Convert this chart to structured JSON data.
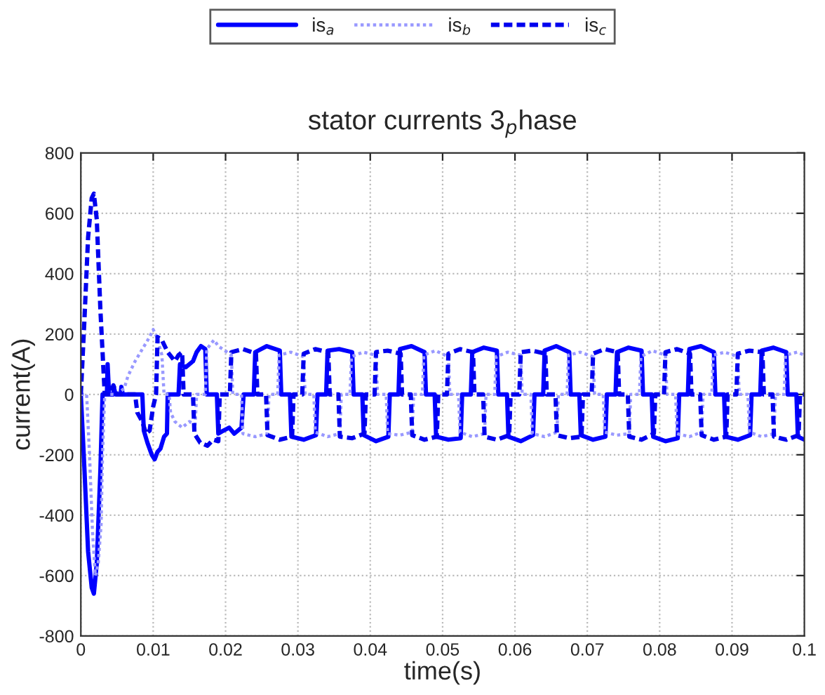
{
  "chart_data": {
    "type": "line",
    "title": "stator currents 3$_{p}$hase",
    "xlabel": "time(s)",
    "ylabel": "current(A)",
    "xlim": [
      0,
      0.1
    ],
    "xticks": [
      0,
      0.01,
      0.02,
      0.03,
      0.04,
      0.05,
      0.06,
      0.07,
      0.08,
      0.09,
      0.1
    ],
    "ylim": [
      -800,
      800
    ],
    "yticks": [
      -800,
      -600,
      -400,
      -200,
      0,
      200,
      400,
      600,
      800
    ],
    "grid": true,
    "legend": "top",
    "marker": "none",
    "series": [
      {
        "name": "is$_{a}$",
        "color": "#0000ff",
        "line_style": "solid",
        "x": [
          0,
          0.0005,
          0.001,
          0.0015,
          0.0018,
          0.0022,
          0.0027,
          0.003,
          0.0036,
          0.0037,
          0.0039,
          0.0045,
          0.0046,
          0.0048,
          0.0055,
          0.0056,
          0.0058,
          0.0085,
          0.0087,
          0.0092,
          0.0098,
          0.0102,
          0.0106,
          0.011,
          0.0115,
          0.0119,
          0.012,
          0.0135,
          0.0137,
          0.0145,
          0.0155,
          0.016,
          0.0166,
          0.0172,
          0.0174,
          0.0188,
          0.019,
          0.0197,
          0.0205,
          0.0212,
          0.0222,
          0.0225,
          0.0239,
          0.0241,
          0.0257,
          0.0275,
          0.0277,
          0.0289,
          0.0291,
          0.0308,
          0.0325,
          0.0327,
          0.0339,
          0.0341,
          0.0357,
          0.0375,
          0.0377,
          0.0389,
          0.0391,
          0.0408,
          0.0425,
          0.0427,
          0.0439,
          0.0441,
          0.0457,
          0.0475,
          0.0477,
          0.0489,
          0.0491,
          0.0508,
          0.0525,
          0.0527,
          0.0539,
          0.0541,
          0.0557,
          0.0575,
          0.0577,
          0.0589,
          0.0591,
          0.0608,
          0.0625,
          0.0627,
          0.0639,
          0.0641,
          0.0657,
          0.0675,
          0.0677,
          0.0689,
          0.0691,
          0.0708,
          0.0725,
          0.0727,
          0.0739,
          0.0741,
          0.0757,
          0.0775,
          0.0777,
          0.0789,
          0.0791,
          0.0808,
          0.0825,
          0.0827,
          0.0839,
          0.0841,
          0.0857,
          0.0875,
          0.0877,
          0.0889,
          0.0891,
          0.0908,
          0.0925,
          0.0927,
          0.0939,
          0.0941,
          0.0957,
          0.0975,
          0.0977,
          0.0989,
          0.0991,
          0.1
        ],
        "values": [
          0,
          -250,
          -520,
          -640,
          -660,
          -560,
          -250,
          0,
          0,
          100,
          0,
          0,
          20,
          0,
          0,
          25,
          0,
          0,
          -120,
          -160,
          -200,
          -215,
          -190,
          -180,
          -140,
          -130,
          0,
          0,
          100,
          90,
          110,
          140,
          160,
          150,
          0,
          0,
          -130,
          -120,
          -110,
          -130,
          -110,
          0,
          0,
          140,
          160,
          145,
          0,
          0,
          -140,
          -150,
          -135,
          0,
          0,
          145,
          150,
          140,
          0,
          0,
          -135,
          -155,
          -140,
          0,
          0,
          150,
          160,
          140,
          0,
          0,
          -140,
          -150,
          -145,
          0,
          0,
          140,
          155,
          145,
          0,
          0,
          -140,
          -155,
          -135,
          0,
          0,
          145,
          160,
          140,
          0,
          0,
          -135,
          -150,
          -140,
          0,
          0,
          140,
          155,
          145,
          0,
          0,
          -140,
          -155,
          -145,
          0,
          0,
          150,
          160,
          140,
          0,
          0,
          -140,
          -150,
          -135,
          0,
          0,
          145,
          155,
          140,
          0,
          0,
          -140,
          -150
        ]
      },
      {
        "name": "is$_{b}$",
        "color": "#9999ff",
        "line_style": "dotted",
        "x": [
          0,
          0.0008,
          0.0012,
          0.0016,
          0.002,
          0.0024,
          0.0028,
          0.003,
          0.0033,
          0.005,
          0.006,
          0.0065,
          0.0075,
          0.0085,
          0.0095,
          0.01,
          0.0105,
          0.0112,
          0.0115,
          0.0122,
          0.0124,
          0.013,
          0.014,
          0.015,
          0.0158,
          0.016,
          0.0172,
          0.0174,
          0.0184,
          0.019,
          0.0208,
          0.021,
          0.0222,
          0.0224,
          0.0241,
          0.0258,
          0.026,
          0.0272,
          0.0274,
          0.029,
          0.0308,
          0.031,
          0.0322,
          0.0324,
          0.0341,
          0.0358,
          0.036,
          0.0372,
          0.0374,
          0.039,
          0.0408,
          0.041,
          0.0422,
          0.0424,
          0.0441,
          0.0458,
          0.046,
          0.0472,
          0.0474,
          0.049,
          0.0508,
          0.051,
          0.0522,
          0.0524,
          0.0541,
          0.0558,
          0.056,
          0.0572,
          0.0574,
          0.059,
          0.0608,
          0.061,
          0.0622,
          0.0624,
          0.0641,
          0.0658,
          0.066,
          0.0672,
          0.0674,
          0.069,
          0.0708,
          0.071,
          0.0722,
          0.0724,
          0.0741,
          0.0758,
          0.076,
          0.0772,
          0.0774,
          0.079,
          0.0808,
          0.081,
          0.0822,
          0.0824,
          0.0841,
          0.0858,
          0.086,
          0.0872,
          0.0874,
          0.089,
          0.0908,
          0.091,
          0.0922,
          0.0924,
          0.0941,
          0.0958,
          0.096,
          0.0972,
          0.0974,
          0.099,
          0.1
        ],
        "values": [
          0,
          0,
          -200,
          -450,
          -600,
          -560,
          -430,
          -200,
          0,
          0,
          20,
          60,
          110,
          150,
          190,
          215,
          190,
          130,
          0,
          0,
          -60,
          -90,
          -110,
          -90,
          -100,
          0,
          0,
          150,
          180,
          160,
          130,
          0,
          0,
          -130,
          -140,
          -130,
          0,
          0,
          130,
          140,
          125,
          0,
          0,
          -125,
          -140,
          -130,
          0,
          0,
          125,
          140,
          130,
          0,
          0,
          -130,
          -135,
          -125,
          0,
          0,
          130,
          145,
          125,
          0,
          0,
          -125,
          -140,
          -130,
          0,
          0,
          125,
          140,
          130,
          0,
          0,
          -130,
          -140,
          -125,
          0,
          0,
          130,
          140,
          125,
          0,
          0,
          -125,
          -135,
          -130,
          0,
          0,
          125,
          145,
          130,
          0,
          0,
          -130,
          -140,
          -125,
          0,
          0,
          130,
          140,
          125,
          0,
          0,
          -125,
          -140,
          -130,
          0,
          0,
          130,
          140,
          130
        ]
      },
      {
        "name": "is$_{c}$",
        "color": "#0000ee",
        "line_style": "dashed",
        "x": [
          0,
          0.0005,
          0.001,
          0.0015,
          0.0018,
          0.0022,
          0.0027,
          0.0033,
          0.004,
          0.0045,
          0.005,
          0.0075,
          0.0078,
          0.0085,
          0.009,
          0.0095,
          0.01,
          0.0104,
          0.0106,
          0.0112,
          0.012,
          0.013,
          0.0135,
          0.014,
          0.0142,
          0.0155,
          0.0157,
          0.0165,
          0.0175,
          0.0183,
          0.019,
          0.0192,
          0.0206,
          0.0208,
          0.0224,
          0.0242,
          0.0244,
          0.0256,
          0.0258,
          0.0275,
          0.0292,
          0.0294,
          0.0306,
          0.0308,
          0.0324,
          0.0342,
          0.0344,
          0.0356,
          0.0358,
          0.0375,
          0.0392,
          0.0394,
          0.0406,
          0.0408,
          0.0424,
          0.0442,
          0.0444,
          0.0456,
          0.0458,
          0.0475,
          0.0492,
          0.0494,
          0.0506,
          0.0508,
          0.0524,
          0.0542,
          0.0544,
          0.0556,
          0.0558,
          0.0575,
          0.0592,
          0.0594,
          0.0606,
          0.0608,
          0.0624,
          0.0642,
          0.0644,
          0.0656,
          0.0658,
          0.0675,
          0.0692,
          0.0694,
          0.0706,
          0.0708,
          0.0724,
          0.0742,
          0.0744,
          0.0756,
          0.0758,
          0.0775,
          0.0792,
          0.0794,
          0.0806,
          0.0808,
          0.0824,
          0.0842,
          0.0844,
          0.0856,
          0.0858,
          0.0875,
          0.0892,
          0.0894,
          0.0906,
          0.0908,
          0.0924,
          0.0942,
          0.0944,
          0.0956,
          0.0958,
          0.0975,
          0.0992,
          0.0994,
          0.1
        ],
        "values": [
          0,
          250,
          520,
          650,
          665,
          580,
          280,
          0,
          0,
          30,
          0,
          0,
          -60,
          -90,
          -130,
          -120,
          -40,
          0,
          190,
          180,
          140,
          110,
          130,
          140,
          0,
          0,
          -130,
          -160,
          -170,
          -150,
          -155,
          0,
          0,
          140,
          150,
          135,
          0,
          0,
          -135,
          -150,
          -140,
          0,
          0,
          135,
          150,
          140,
          0,
          0,
          -140,
          -145,
          -130,
          0,
          0,
          140,
          145,
          135,
          0,
          0,
          -135,
          -150,
          -140,
          0,
          0,
          135,
          150,
          140,
          0,
          0,
          -140,
          -150,
          -135,
          0,
          0,
          140,
          145,
          135,
          0,
          0,
          -135,
          -145,
          -140,
          0,
          0,
          135,
          150,
          140,
          0,
          0,
          -140,
          -150,
          -130,
          0,
          0,
          140,
          150,
          135,
          0,
          0,
          -135,
          -150,
          -140,
          0,
          0,
          135,
          145,
          140,
          0,
          0,
          -140,
          -150,
          -135,
          0,
          0
        ]
      }
    ]
  }
}
